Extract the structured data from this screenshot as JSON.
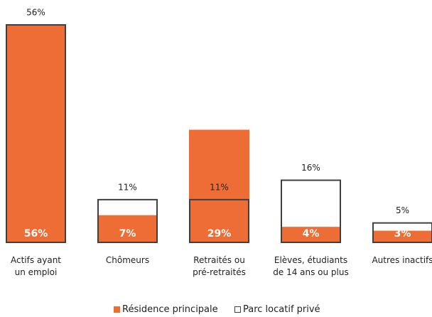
{
  "chart_data": {
    "type": "bar",
    "categories": [
      "Actifs ayant\nun emploi",
      "Chômeurs",
      "Retraités ou\npré-retraités",
      "Elèves, étudiants\nde 14 ans ou plus",
      "Autres inactifs"
    ],
    "series": [
      {
        "name": "Résidence principale",
        "color": "#ed6d35",
        "values": [
          56,
          7,
          29,
          4,
          3
        ],
        "value_labels": [
          "56%",
          "7%",
          "29%",
          "4%",
          "3%"
        ]
      },
      {
        "name": "Parc locatif privé",
        "color": "#404040",
        "values": [
          56,
          11,
          11,
          16,
          5
        ],
        "value_labels": [
          "56%",
          "11%",
          "11%",
          "16%",
          "5%"
        ]
      }
    ],
    "legend": "bottom"
  }
}
